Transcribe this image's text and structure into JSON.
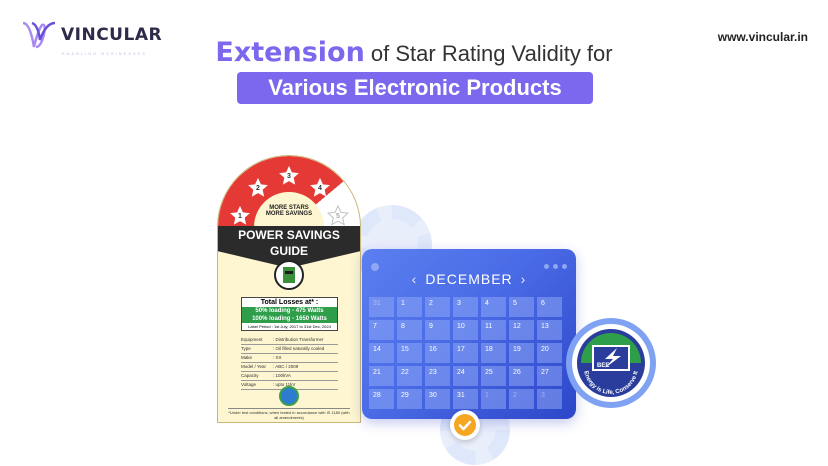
{
  "brand": {
    "name": "VINCULAR",
    "tagline": "ENABLING BUSINESSES",
    "url": "www.vincular.in",
    "accent": "#7b68ee"
  },
  "headline": {
    "highlight": "Extension",
    "rest": " of Star Rating Validity for",
    "pill": "Various Electronic Products"
  },
  "label": {
    "stars": [
      "1",
      "2",
      "3",
      "4",
      "5"
    ],
    "slogan_line1": "MORE STARS",
    "slogan_line2": "MORE SAVINGS",
    "guide_line1": "POWER SAVINGS",
    "guide_line2": "GUIDE",
    "losses_title": "Total Losses at* :",
    "loss_50": "50% loading - 475 Watts",
    "loss_100": "100% loading - 1650 Watts",
    "period": "Label Period : 1st July, 2017 to 31st Dec, 2024",
    "specs": [
      {
        "k": "Equipment",
        "v": ": Distribution Transformer"
      },
      {
        "k": "Type",
        "v": ": Oil filled naturally cooled"
      },
      {
        "k": "Make",
        "v": ": XX"
      },
      {
        "k": "Model / Year",
        "v": ": ABC / 2009"
      },
      {
        "k": "Capacity",
        "v": ": 100kVA"
      },
      {
        "k": "Voltage",
        "v": ": upto 11kV"
      }
    ],
    "seal_text": "BEE",
    "footnote": "*Under test conditions, when tested in accordance with IS 1180 (with all amendments)"
  },
  "calendar": {
    "month": "DECEMBER",
    "prev": "‹",
    "next": "›",
    "days": [
      [
        "31",
        "1",
        "2",
        "3",
        "4",
        "5",
        "6"
      ],
      [
        "7",
        "8",
        "9",
        "10",
        "11",
        "12",
        "13"
      ],
      [
        "14",
        "15",
        "16",
        "17",
        "18",
        "19",
        "20"
      ],
      [
        "21",
        "22",
        "23",
        "24",
        "25",
        "26",
        "27"
      ],
      [
        "28",
        "29",
        "30",
        "31",
        "1",
        "2",
        "3"
      ]
    ],
    "check_icon": "checkmark-icon"
  },
  "bee_badge": {
    "abbr": "BEE",
    "motto": "Energy is Life, Conserve It"
  }
}
